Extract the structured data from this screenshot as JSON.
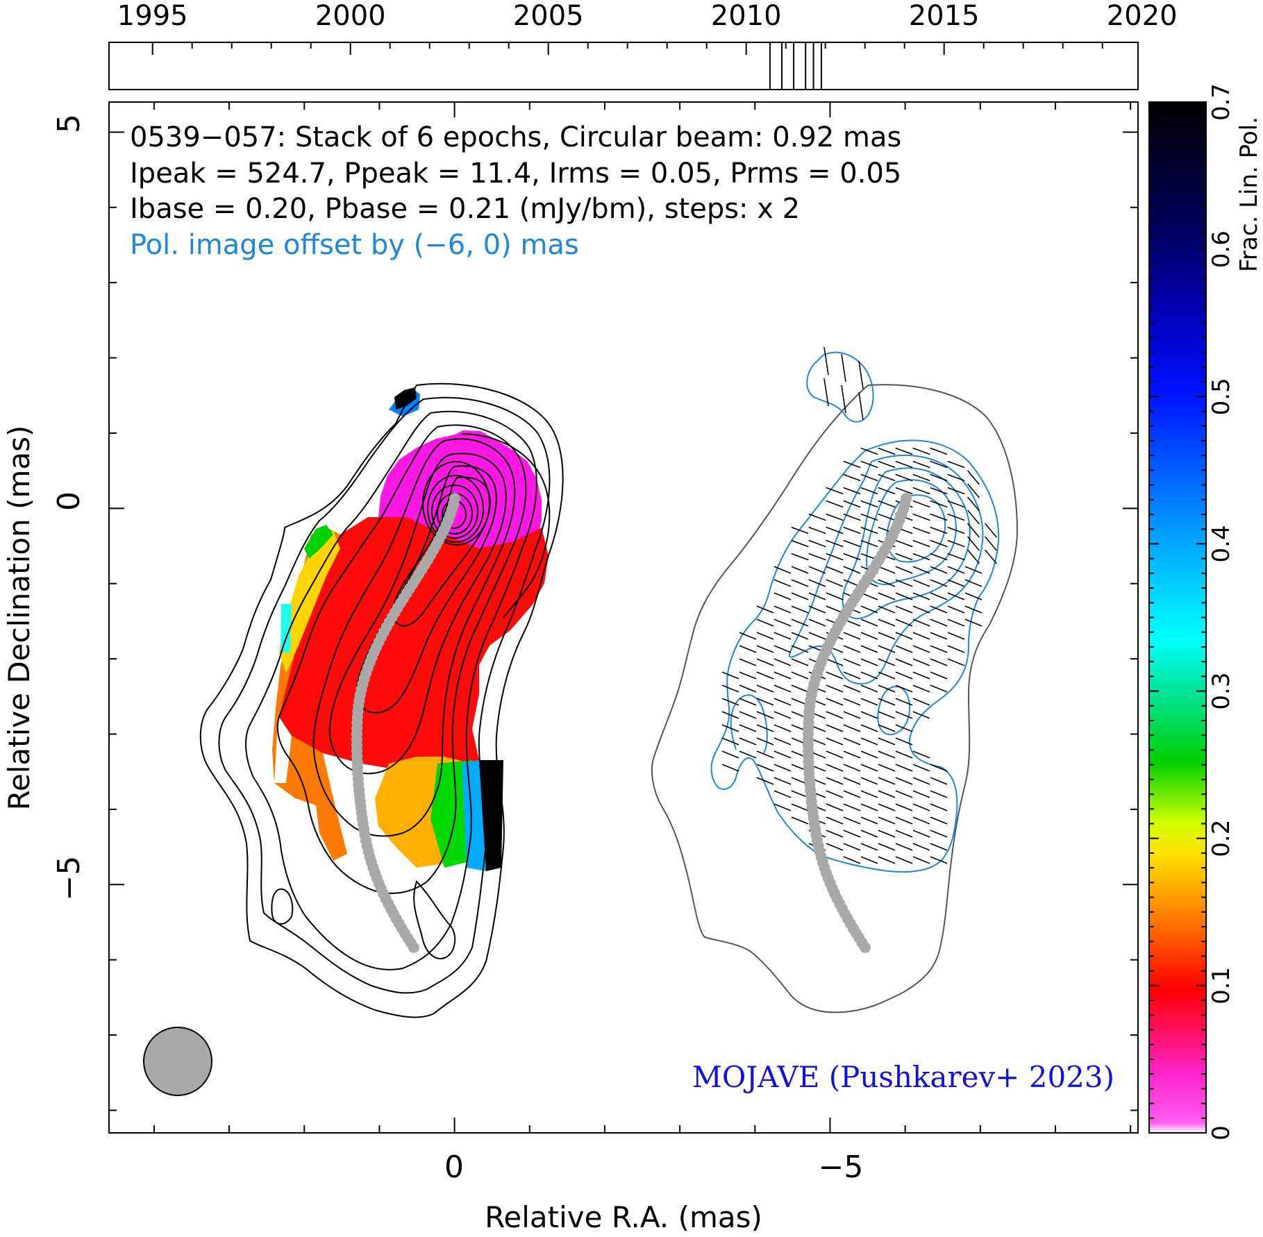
{
  "chart_data": {
    "type": "heatmap",
    "source": "0539−057",
    "header_lines": [
      "0539−057: Stack of 6 epochs, Circular beam: 0.92 mas",
      "Ipeak = 524.7, Ppeak = 11.4, Irms = 0.05, Prms = 0.05",
      "Ibase = 0.20, Pbase = 0.21 (mJy/bm), steps: x 2"
    ],
    "offset_note": "Pol. image offset by (−6, 0) mas",
    "credit": "MOJAVE (Pushkarev+ 2023)",
    "xlabel": "Relative R.A. (mas)",
    "ylabel": "Relative Declination (mas)",
    "x_ticks": [
      "0",
      "−5"
    ],
    "y_ticks": [
      "5",
      "0",
      "−5"
    ],
    "xlim": [
      4.6,
      -9.1
    ],
    "ylim": [
      -8.3,
      5.4
    ],
    "colorbar": {
      "label": "Frac. Lin. Pol.",
      "ticks": [
        "0",
        "0.1",
        "0.2",
        "0.3",
        "0.4",
        "0.5",
        "0.6",
        "0.7"
      ],
      "range": [
        0,
        0.7
      ]
    },
    "epoch_timeline": {
      "year_labels": [
        "1995",
        "2000",
        "2005",
        "2010",
        "2015",
        "2020"
      ],
      "range": [
        1993.9,
        2019.9
      ],
      "epochs": [
        2010.6,
        2010.9,
        2011.2,
        2011.5,
        2011.7,
        2011.9
      ]
    },
    "beam_diameter_mas": 0.92,
    "colors": {
      "stokes_i_contour": "#000000",
      "pol_contour": "#1f86dd",
      "outer_pol_contour": "#555555",
      "ridgeline": "#a9a9a9",
      "credit": "#1010dd",
      "offset_note": "#1f86dd",
      "beam": "#a9a9a9"
    }
  }
}
